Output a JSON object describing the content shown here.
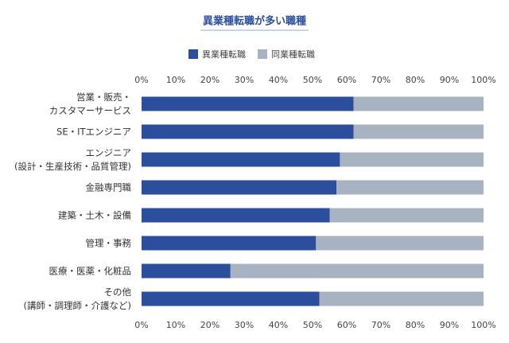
{
  "chart_data": {
    "type": "stacked-bar-horizontal",
    "title": "異業種転職が多い職種",
    "categories": [
      "営業・販売・\nカスタマーサービス",
      "SE・ITエンジニア",
      "エンジニア\n(設計・生産技術・品質管理)",
      "金融専門職",
      "建築・土木・設備",
      "管理・事務",
      "医療・医薬・化粧品",
      "その他\n(講師・調理師・介護など)"
    ],
    "series": [
      {
        "name": "異業種転職",
        "color": "#2b4f9d",
        "values": [
          62,
          62,
          58,
          57,
          55,
          51,
          26,
          52
        ]
      },
      {
        "name": "同業種転職",
        "color": "#a7b3c0",
        "values": [
          38,
          38,
          42,
          43,
          45,
          49,
          74,
          48
        ]
      }
    ],
    "xlim": [
      0,
      100
    ],
    "xticks": [
      {
        "value": 0,
        "label": "0%"
      },
      {
        "value": 10,
        "label": "10%"
      },
      {
        "value": 20,
        "label": "20%"
      },
      {
        "value": 30,
        "label": "30%"
      },
      {
        "value": 40,
        "label": "40%"
      },
      {
        "value": 50,
        "label": "50%"
      },
      {
        "value": 60,
        "label": "60%"
      },
      {
        "value": 70,
        "label": "70%"
      },
      {
        "value": 80,
        "label": "80%"
      },
      {
        "value": 90,
        "label": "90%"
      },
      {
        "value": 100,
        "label": "100%"
      }
    ],
    "legend": "top"
  }
}
